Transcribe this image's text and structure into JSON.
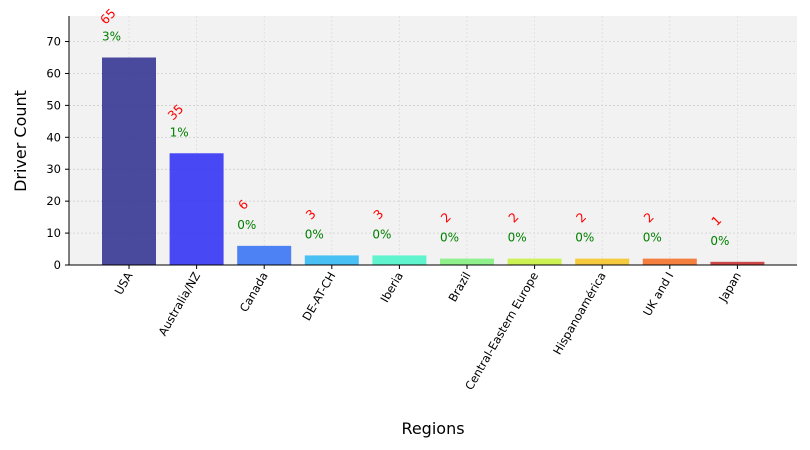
{
  "chart_data": {
    "type": "bar",
    "title": "",
    "xlabel": "Regions",
    "ylabel": "Driver Count",
    "categories": [
      "USA",
      "Australia/NZ",
      "Canada",
      "DE-AT-CH",
      "Iberia",
      "Brazil",
      "Central-Eastern Europe",
      "Hispanoamérica",
      "UK and I",
      "Japan"
    ],
    "values": [
      65,
      35,
      6,
      3,
      3,
      2,
      2,
      2,
      2,
      1
    ],
    "percent_labels": [
      "3%",
      "1%",
      "0%",
      "0%",
      "0%",
      "0%",
      "0%",
      "0%",
      "0%",
      "0%"
    ],
    "ylim": [
      0,
      78
    ],
    "yticks": [
      0,
      10,
      20,
      30,
      40,
      50,
      60,
      70
    ],
    "grid": true,
    "legend": "none",
    "colors": [
      "#2b2b8f",
      "#2a2af5",
      "#2f6ff5",
      "#2cb7f3",
      "#47f5c8",
      "#7ef07a",
      "#c4f13a",
      "#f6c31f",
      "#f56b1e",
      "#c92a2a"
    ],
    "value_label_color": "#ff0000",
    "percent_label_color": "#008000",
    "background": "#f2f2f2"
  }
}
